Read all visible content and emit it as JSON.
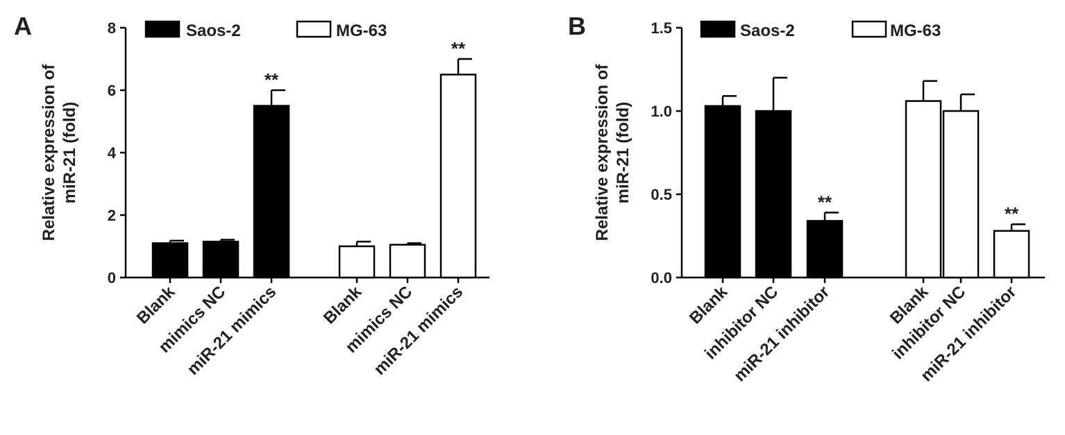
{
  "legend": {
    "series_a_name": "Saos-2",
    "series_b_name": "MG-63"
  },
  "significance_mark": "**",
  "colors": {
    "saos2_fill": "#000000",
    "mg63_fill": "#ffffff",
    "stroke": "#000000"
  },
  "chart_data": [
    {
      "panel_label": "A",
      "type": "bar",
      "ylabel": "Relative expression of\nmiR-21 (fold)",
      "ylim": [
        0,
        8
      ],
      "yticks": [
        "0",
        "2",
        "4",
        "6",
        "8"
      ],
      "ytick_values": [
        0,
        2,
        4,
        6,
        8
      ],
      "legend_position": "top",
      "grid": false,
      "series": [
        {
          "name": "Saos-2",
          "categories": [
            "Blank",
            "mimics NC",
            "miR-21 mimics"
          ],
          "values": [
            1.1,
            1.15,
            5.5
          ],
          "errors": [
            0.08,
            0.06,
            0.5
          ],
          "significance": [
            "",
            "",
            "**"
          ]
        },
        {
          "name": "MG-63",
          "categories": [
            "Blank",
            "mimics NC",
            "miR-21 mimics"
          ],
          "values": [
            1.0,
            1.05,
            6.5
          ],
          "errors": [
            0.15,
            0.05,
            0.5
          ],
          "significance": [
            "",
            "",
            "**"
          ]
        }
      ]
    },
    {
      "panel_label": "B",
      "type": "bar",
      "ylabel": "Relative expression of\nmiR-21 (fold)",
      "ylim": [
        0,
        1.5
      ],
      "yticks": [
        "0.0",
        "0.5",
        "1.0",
        "1.5"
      ],
      "ytick_values": [
        0,
        0.5,
        1.0,
        1.5
      ],
      "legend_position": "top",
      "grid": false,
      "series": [
        {
          "name": "Saos-2",
          "categories": [
            "Blank",
            "inhibitor NC",
            "miR-21 inhibitor"
          ],
          "values": [
            1.03,
            1.0,
            0.34
          ],
          "errors": [
            0.06,
            0.2,
            0.05
          ],
          "significance": [
            "",
            "",
            "**"
          ]
        },
        {
          "name": "MG-63",
          "categories": [
            "Blank",
            "inhibitor NC",
            "miR-21 inhibitor"
          ],
          "values": [
            1.06,
            1.0,
            0.28
          ],
          "errors": [
            0.12,
            0.1,
            0.04
          ],
          "significance": [
            "",
            "",
            "**"
          ]
        }
      ]
    }
  ]
}
